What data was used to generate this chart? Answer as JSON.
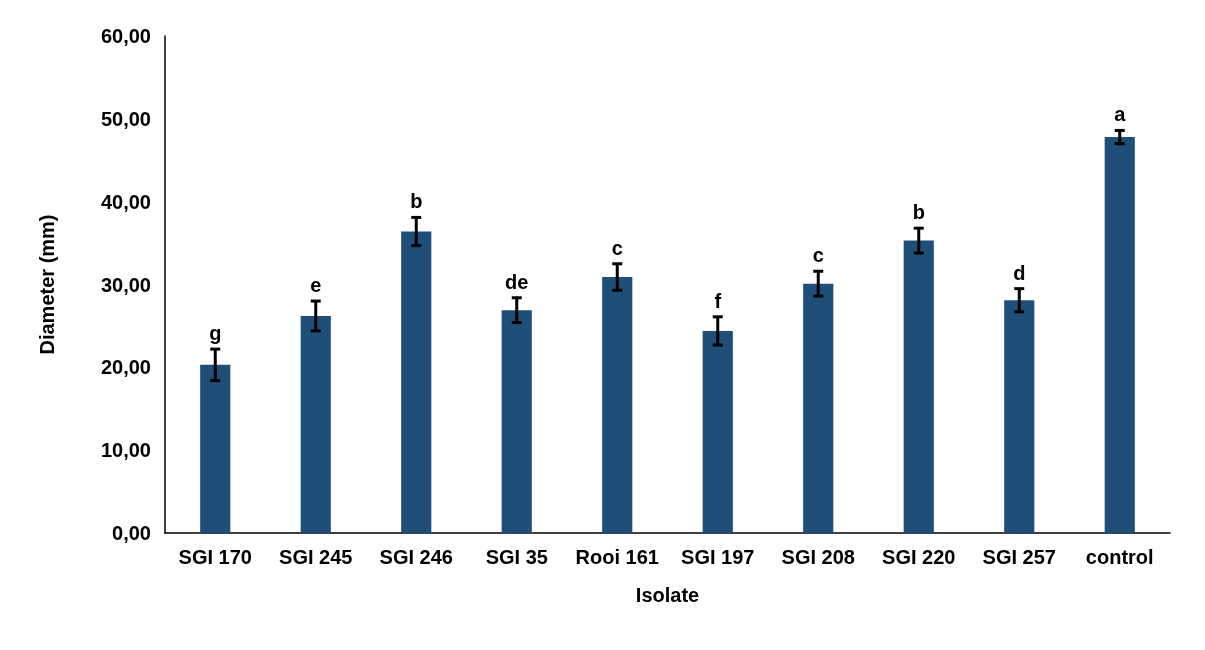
{
  "chart_data": {
    "type": "bar",
    "xlabel": "Isolate",
    "ylabel": "Diameter (mm)",
    "categories": [
      "SGI 170",
      "SGI 245",
      "SGI 246",
      "SGI 35",
      "Rooi 161",
      "SGI 197",
      "SGI 208",
      "SGI 220",
      "SGI 257",
      "control"
    ],
    "values": [
      20.3,
      26.2,
      36.4,
      26.9,
      30.9,
      24.4,
      30.1,
      35.3,
      28.1,
      47.8
    ],
    "errors": [
      1.9,
      1.8,
      1.7,
      1.5,
      1.6,
      1.7,
      1.5,
      1.5,
      1.4,
      0.8
    ],
    "color": "#1f4e79",
    "ylim": [
      0,
      60
    ],
    "yticks": [
      {
        "value": 0,
        "label": "0,00"
      },
      {
        "value": 10,
        "label": "10,00"
      },
      {
        "value": 20,
        "label": "20,00"
      },
      {
        "value": 30,
        "label": "30,00"
      },
      {
        "value": 40,
        "label": "40,00"
      },
      {
        "value": 50,
        "label": "50,00"
      },
      {
        "value": 60,
        "label": "60,00"
      }
    ],
    "grid": false,
    "annotations": [
      {
        "text": "g",
        "x": "SGI 170",
        "y": 20.3
      },
      {
        "text": "e",
        "x": "SGI 245",
        "y": 26.2
      },
      {
        "text": "b",
        "x": "SGI 246",
        "y": 36.4
      },
      {
        "text": "de",
        "x": "SGI 35",
        "y": 26.9
      },
      {
        "text": "c",
        "x": "Rooi 161",
        "y": 30.9
      },
      {
        "text": "f",
        "x": "SGI 197",
        "y": 24.4
      },
      {
        "text": "c",
        "x": "SGI 208",
        "y": 30.1
      },
      {
        "text": "b",
        "x": "SGI 220",
        "y": 35.3
      },
      {
        "text": "d",
        "x": "SGI 257",
        "y": 28.1
      },
      {
        "text": "a",
        "x": "control",
        "y": 47.8
      }
    ]
  }
}
